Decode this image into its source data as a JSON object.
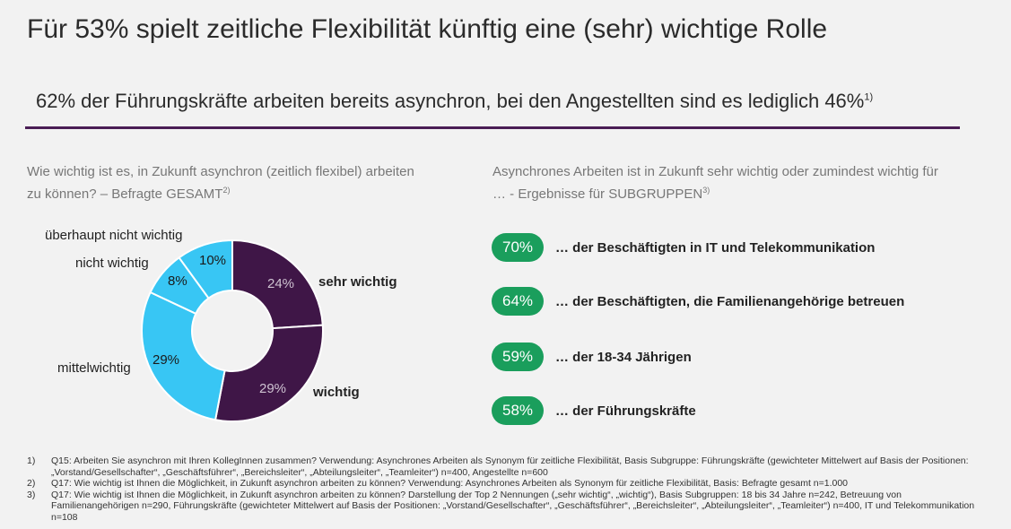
{
  "title": "Für 53% spielt zeitliche Flexibilität künftig eine (sehr) wichtige Rolle",
  "subtitle": "62% der Führungskräfte arbeiten bereits asynchron, bei den Angestellten sind es lediglich 46%",
  "subtitle_ref": "1)",
  "left_question": "Wie wichtig ist es, in Zukunft asynchron (zeitlich flexibel) arbeiten zu können? – Befragte GESAMT",
  "left_question_ref": "2)",
  "right_question": "Asynchrones Arbeiten ist in Zukunft sehr wichtig oder zumindest wichtig für … - Ergebnisse für SUBGRUPPEN",
  "right_question_ref": "3)",
  "colors": {
    "dark_purple": "#3f1647",
    "light_blue": "#38c6f4",
    "green": "#1a9e5c",
    "rule": "#4a1d55"
  },
  "chart_data": [
    {
      "type": "pie",
      "variant": "donut",
      "slices": [
        {
          "label": "sehr wichtig",
          "value": 24,
          "display": "24%",
          "color": "#3f1647"
        },
        {
          "label": "wichtig",
          "value": 29,
          "display": "29%",
          "color": "#3f1647"
        },
        {
          "label": "mittelwichtig",
          "value": 29,
          "display": "29%",
          "color": "#38c6f4"
        },
        {
          "label": "nicht wichtig",
          "value": 8,
          "display": "8%",
          "color": "#38c6f4"
        },
        {
          "label": "überhaupt nicht wichtig",
          "value": 10,
          "display": "10%",
          "color": "#38c6f4"
        }
      ]
    },
    {
      "type": "table",
      "rows": [
        {
          "value": 70,
          "display": "70%",
          "label": "… der Beschäftigten in IT und Telekommunikation"
        },
        {
          "value": 64,
          "display": "64%",
          "label": "… der Beschäftigten, die Familienangehörige betreuen"
        },
        {
          "value": 59,
          "display": "59%",
          "label": "… der 18-34 Jährigen"
        },
        {
          "value": 58,
          "display": "58%",
          "label": "… der Führungskräfte"
        }
      ]
    }
  ],
  "footnotes": [
    {
      "num": "1)",
      "text": "Q15: Arbeiten Sie asynchron mit Ihren KollegInnen zusammen? Verwendung: Asynchrones Arbeiten als Synonym für zeitliche Flexibilität, Basis Subgruppe: Führungskräfte (gewichteter Mittelwert auf Basis der Positionen: „Vorstand/Gesellschafter“, „Geschäftsführer“, „Bereichsleiter“, „Abteilungsleiter“, „Teamleiter“) n=400, Angestellte n=600"
    },
    {
      "num": "2)",
      "text": "Q17: Wie wichtig ist Ihnen die Möglichkeit, in Zukunft asynchron arbeiten zu können? Verwendung: Asynchrones Arbeiten als Synonym für zeitliche Flexibilität, Basis: Befragte gesamt n=1.000"
    },
    {
      "num": "3)",
      "text": "Q17: Wie wichtig ist Ihnen die Möglichkeit, in Zukunft asynchron arbeiten zu können? Darstellung der Top 2 Nennungen („sehr wichtig“, „wichtig“), Basis Subgruppen: 18 bis 34 Jahre n=242, Betreuung von Familienangehörigen n=290, Führungskräfte (gewichteter Mittelwert auf Basis der Positionen: „Vorstand/Gesellschafter“, „Geschäftsführer“, „Bereichsleiter“, „Abteilungsleiter“, „Teamleiter“) n=400, IT und Telekommunikation n=108"
    }
  ]
}
